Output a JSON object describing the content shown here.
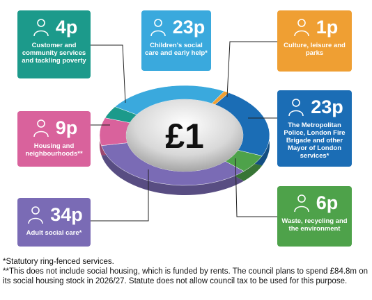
{
  "chart_data": {
    "type": "donut",
    "center_label": "£1",
    "categories": [
      "Children's social care and early help*",
      "Culture, leisure and parks",
      "The Metropolitan Police, London Fire Brigade and other Mayor of London services*",
      "Waste, recycling and the environment",
      "Adult social care*",
      "Housing and neighbourhoods**",
      "Customer and community services and tackling poverty"
    ],
    "values": [
      23,
      1,
      23,
      6,
      34,
      9,
      4
    ],
    "value_labels": [
      "23p",
      "1p",
      "23p",
      "6p",
      "34p",
      "9p",
      "4p"
    ],
    "colors": [
      "#3aa9dd",
      "#ef9f33",
      "#1b6db5",
      "#4ea24a",
      "#7a6bb5",
      "#d9629c",
      "#1c9a8b"
    ],
    "footnotes": [
      "*Statutory ring-fenced services.",
      "**This does not include social housing, which is funded by rents. The council plans to spend £84.8m on its social housing stock in 2026/27. Statute does not allow council tax to be used for this purpose."
    ]
  }
}
